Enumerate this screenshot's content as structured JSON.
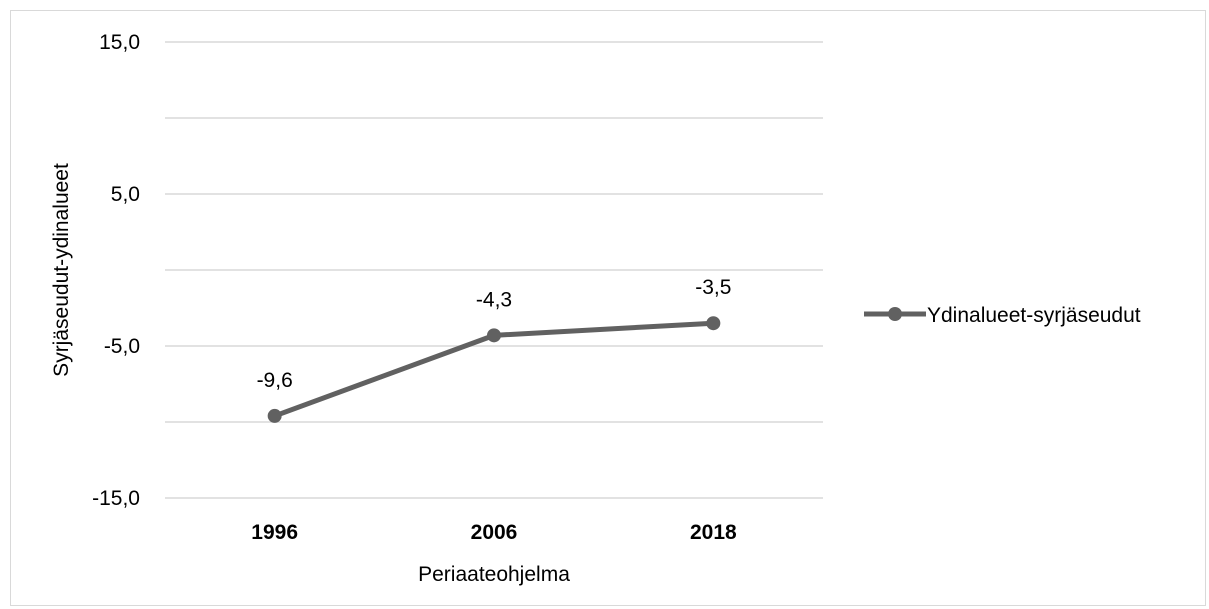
{
  "chart_data": {
    "type": "line",
    "title": "",
    "xlabel": "Periaateohjelma",
    "ylabel": "Syrjäseudut-ydinalueet",
    "categories": [
      "1996",
      "2006",
      "2018"
    ],
    "series": [
      {
        "name": "Ydinalueet-syrjäseudut",
        "values": [
          -9.6,
          -4.3,
          -3.5
        ],
        "labels": [
          "-9,6",
          "-4,3",
          "-3,5"
        ]
      }
    ],
    "ylim": [
      -15,
      15
    ],
    "yticks": [
      15,
      5,
      -5,
      -15
    ],
    "ytick_labels": [
      "15,0",
      "5,0",
      "-5,0",
      "-15,0"
    ],
    "gridlines_at": [
      15,
      10,
      5,
      0,
      -5,
      -10,
      -15
    ],
    "grid": true,
    "legend_position": "right",
    "series_color": "#616161",
    "grid_color": "#d9d9d9"
  }
}
